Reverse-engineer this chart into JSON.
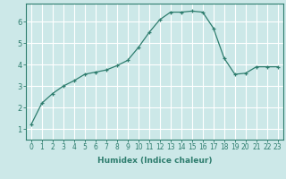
{
  "x": [
    0,
    1,
    2,
    3,
    4,
    5,
    6,
    7,
    8,
    9,
    10,
    11,
    12,
    13,
    14,
    15,
    16,
    17,
    18,
    19,
    20,
    21,
    22,
    23
  ],
  "y": [
    1.2,
    2.2,
    2.65,
    3.0,
    3.25,
    3.55,
    3.65,
    3.75,
    3.95,
    4.2,
    4.8,
    5.5,
    6.1,
    6.45,
    6.45,
    6.5,
    6.45,
    5.7,
    4.3,
    3.55,
    3.6,
    3.9,
    3.9,
    3.9
  ],
  "line_color": "#2e7d6e",
  "marker": "+",
  "marker_size": 3,
  "xlabel": "Humidex (Indice chaleur)",
  "xlim": [
    -0.5,
    23.5
  ],
  "ylim": [
    0.5,
    6.85
  ],
  "yticks": [
    1,
    2,
    3,
    4,
    5,
    6
  ],
  "xticks": [
    0,
    1,
    2,
    3,
    4,
    5,
    6,
    7,
    8,
    9,
    10,
    11,
    12,
    13,
    14,
    15,
    16,
    17,
    18,
    19,
    20,
    21,
    22,
    23
  ],
  "bg_color": "#cce8e8",
  "grid_color": "#ffffff",
  "tick_color": "#2e7d6e",
  "label_color": "#2e7d6e",
  "tick_fontsize": 5.5,
  "xlabel_fontsize": 6.5
}
